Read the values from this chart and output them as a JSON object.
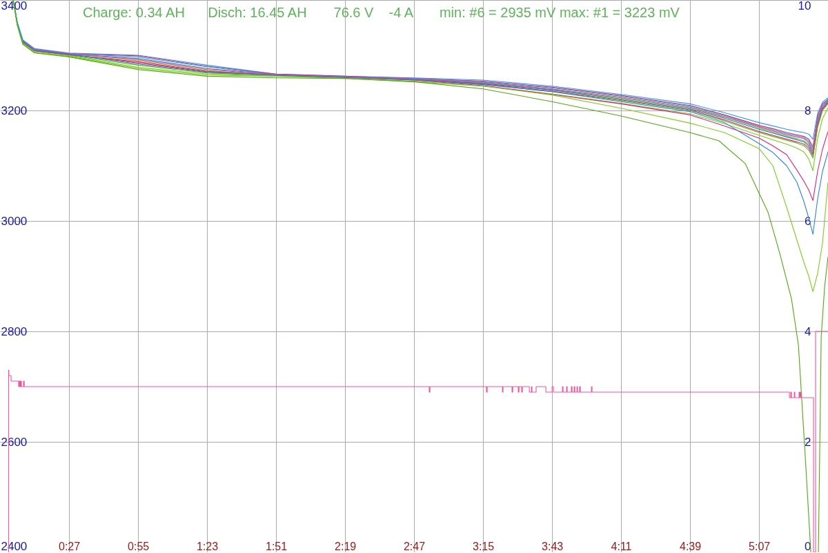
{
  "chart_data": {
    "type": "line",
    "title": "Charge: 0.34 AH      Disch: 16.45 AH       76.6 V    -4 A       min: #6 = 2935 mV max: #1 = 3223 mV",
    "x": [
      0.072,
      0.1,
      0.137,
      0.217,
      0.45,
      0.917,
      1.383,
      1.85,
      2.317,
      2.783,
      3.25,
      3.717,
      4.183,
      4.65,
      4.883,
      5.117,
      5.21,
      5.303,
      5.373,
      5.42,
      5.453,
      5.481,
      5.513,
      5.546,
      5.583
    ],
    "xlim": [
      -0.017,
      5.583
    ],
    "xticks": [
      {
        "value": 0.45,
        "label": "0:27"
      },
      {
        "value": 0.917,
        "label": "0:55"
      },
      {
        "value": 1.383,
        "label": "1:23"
      },
      {
        "value": 1.85,
        "label": "1:51"
      },
      {
        "value": 2.317,
        "label": "2:19"
      },
      {
        "value": 2.783,
        "label": "2:47"
      },
      {
        "value": 3.25,
        "label": "3:15"
      },
      {
        "value": 3.717,
        "label": "3:43"
      },
      {
        "value": 4.183,
        "label": "4:11"
      },
      {
        "value": 4.65,
        "label": "4:39"
      },
      {
        "value": 5.117,
        "label": "5:07"
      }
    ],
    "ylim": [
      2400,
      3400
    ],
    "yticks": [
      2400,
      2600,
      2800,
      3000,
      3200,
      3400
    ],
    "y2lim": [
      0,
      10
    ],
    "y2ticks": [
      0,
      2,
      4,
      6,
      8,
      10
    ],
    "grid": true,
    "series": [
      {
        "color": "#3399ee",
        "values": [
          3400,
          3360,
          3328,
          3312,
          3304,
          3300,
          3282,
          3266,
          3262,
          3259,
          3255,
          3244,
          3229,
          3212,
          3196,
          3178,
          3172,
          3166,
          3162,
          3160,
          3157,
          3148,
          3195,
          3215,
          3223
        ]
      },
      {
        "color": "#e0207a",
        "values": [
          null,
          null,
          3327,
          3311,
          3303,
          3299,
          3280,
          3266,
          3262,
          3258,
          3253,
          3242,
          3227,
          3209,
          3192,
          3173,
          3167,
          3160,
          3156,
          3153,
          3148,
          3134,
          3190,
          3212,
          3220
        ]
      },
      {
        "color": "#66cc11",
        "values": [
          3400,
          3357,
          3324,
          3309,
          3301,
          3290,
          3272,
          3264,
          3261,
          3257,
          3250,
          3238,
          3223,
          3205,
          3188,
          3168,
          3161,
          3154,
          3149,
          3145,
          3139,
          3126,
          3180,
          3207,
          3219
        ]
      },
      {
        "color": "#1f6fd8",
        "values": [
          3400,
          3358,
          3326,
          3310,
          3302,
          3294,
          3276,
          3265,
          3261,
          3256,
          3249,
          3237,
          3221,
          3203,
          3186,
          3166,
          3159,
          3152,
          3147,
          3143,
          3136,
          3122,
          3176,
          3204,
          3216
        ]
      },
      {
        "color": "#d81f6f",
        "values": [
          3400,
          3357,
          3325,
          3309,
          3301,
          3286,
          3270,
          3264,
          3260,
          3256,
          3248,
          3235,
          3219,
          3201,
          3183,
          3162,
          3155,
          3148,
          3143,
          3139,
          3132,
          3118,
          3172,
          3202,
          3214
        ]
      },
      {
        "color": "#22aadd",
        "values": [
          3400,
          3359,
          3327,
          3311,
          3303,
          3297,
          3279,
          3265,
          3261,
          3258,
          3252,
          3241,
          3226,
          3208,
          3191,
          3171,
          3165,
          3158,
          3154,
          3151,
          3145,
          3130,
          3186,
          3209,
          3221
        ]
      },
      {
        "color": "#55b800",
        "values": [
          3400,
          3356,
          3323,
          3308,
          3300,
          3282,
          3268,
          3263,
          3260,
          3255,
          3247,
          3234,
          3218,
          3200,
          3181,
          3160,
          3153,
          3146,
          3141,
          3136,
          3128,
          3114,
          3170,
          3200,
          3212
        ]
      },
      {
        "color": "#f04090",
        "values": [
          null,
          null,
          3326,
          3310,
          3303,
          3292,
          3274,
          3265,
          3261,
          3257,
          3251,
          3239,
          3224,
          3206,
          3189,
          3170,
          3163,
          3156,
          3152,
          3149,
          3142,
          3126,
          3183,
          3208,
          3218
        ]
      },
      {
        "color": "#77cc22",
        "values": [
          3400,
          3356,
          3322,
          3306,
          3299,
          3278,
          3266,
          3262,
          3259,
          3253,
          3244,
          3230,
          3213,
          3194,
          3176,
          3155,
          3147,
          3139,
          3132,
          3125,
          3112,
          3091,
          3150,
          3185,
          3205
        ]
      },
      {
        "color": "#dd2277",
        "values": [
          null,
          null,
          3324,
          3308,
          3301,
          3288,
          3271,
          3264,
          3260,
          3255,
          3245,
          3229,
          3212,
          3192,
          3172,
          3150,
          3136,
          3120,
          3092,
          3072,
          3056,
          3037,
          3090,
          3130,
          3162
        ]
      },
      {
        "color": "#2b82e0",
        "values": [
          3400,
          3358,
          3325,
          3309,
          3302,
          3284,
          3269,
          3264,
          3260,
          3256,
          3247,
          3234,
          3216,
          3198,
          3178,
          3140,
          3124,
          3100,
          3070,
          3035,
          3005,
          2976,
          3040,
          3090,
          3125
        ]
      },
      {
        "color": "#7dcc1e",
        "values": [
          3400,
          3355,
          3321,
          3305,
          3298,
          3276,
          3264,
          3262,
          3258,
          3252,
          3244,
          3228,
          3204,
          3177,
          3160,
          3131,
          3100,
          3025,
          2965,
          2925,
          2900,
          2872,
          2905,
          2960,
          3070
        ]
      },
      {
        "color": "#4fa812",
        "x": [
          0.072,
          0.1,
          0.137,
          0.217,
          0.45,
          0.917,
          1.383,
          1.85,
          2.317,
          2.783,
          3.25,
          3.717,
          4.183,
          4.65,
          4.846,
          5.023,
          5.117,
          5.177,
          5.257,
          5.336,
          5.383,
          5.429,
          5.467,
          5.49,
          5.518,
          5.537,
          5.56,
          5.583
        ],
        "values": [
          3400,
          3354,
          3320,
          3304,
          3297,
          3274,
          3262,
          3259,
          3258,
          3252,
          3239,
          3216,
          3190,
          3160,
          3145,
          3104,
          3050,
          3016,
          2941,
          2859,
          2775,
          2574,
          2400,
          null,
          2400,
          2790,
          2880,
          2935
        ]
      },
      {
        "type": "step",
        "axis": "y2",
        "color": "#f0559d",
        "x": [
          0.039,
          0.041,
          0.043,
          0.058,
          0.109,
          0.114,
          0.119,
          0.123,
          0.128,
          0.142,
          0.147,
          2.886,
          2.891,
          3.273,
          3.278,
          3.381,
          3.385,
          3.446,
          3.451,
          3.488,
          3.493,
          3.511,
          3.516,
          3.563,
          3.577,
          3.581,
          3.609,
          3.675,
          3.717,
          3.726,
          3.787,
          3.791,
          3.815,
          3.819,
          3.847,
          3.852,
          3.866,
          3.871,
          3.885,
          3.889,
          3.903,
          3.908,
          3.983,
          3.987,
          5.322,
          5.331,
          5.336,
          5.355,
          5.359,
          5.387,
          5.392,
          5.397,
          5.401,
          5.485,
          5.499,
          5.583
        ],
        "values": [
          0,
          3.3,
          3.2,
          3.1,
          3.0,
          3.1,
          3.0,
          3.1,
          3.0,
          3.1,
          3.0,
          2.9,
          3.0,
          2.9,
          3.0,
          2.9,
          3.0,
          2.9,
          3.0,
          2.9,
          3.0,
          2.9,
          3.0,
          2.9,
          3.0,
          2.9,
          3.0,
          2.9,
          3.0,
          2.9,
          3.0,
          2.9,
          3.0,
          2.9,
          3.0,
          2.9,
          3.0,
          2.9,
          3.0,
          2.9,
          3.0,
          2.9,
          3.0,
          2.9,
          2.8,
          2.9,
          2.8,
          2.9,
          2.8,
          2.9,
          2.8,
          2.9,
          2.8,
          0,
          4.0,
          4.0
        ]
      }
    ]
  }
}
